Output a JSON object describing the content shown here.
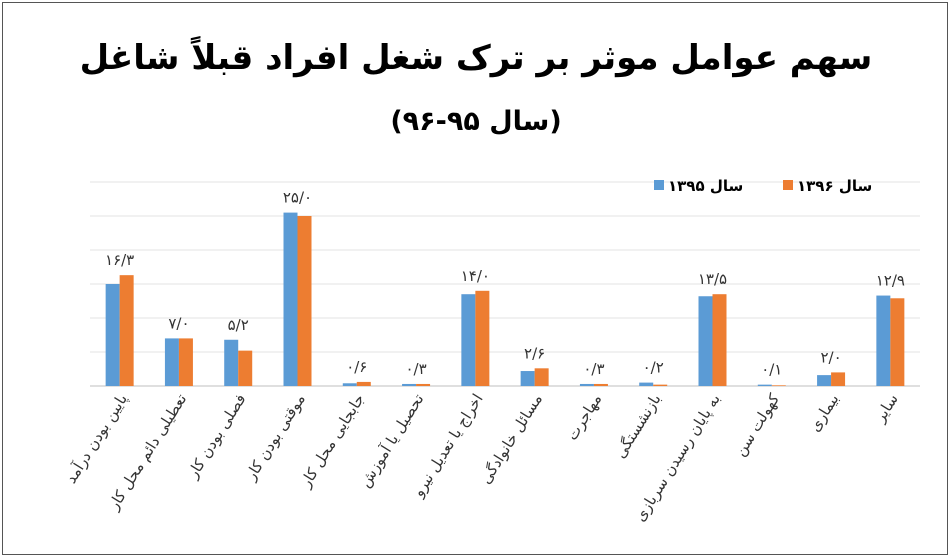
{
  "chart_data": {
    "type": "bar",
    "title": "سهم عوامل موثر بر ترک شغل افراد قبلاً شاغل",
    "subtitle": "(سال ۹۵-۹۶)",
    "categories": [
      "پایین بودن درآمد",
      "تعطیلی دائم محل کار",
      "فصلی بودن کار",
      "موقتی بودن کار",
      "جابجایی محل کار",
      "تحصیل یا آموزش",
      "اخراج یا تعدیل نیرو",
      "مسائل خانوادگی",
      "مهاجرت",
      "بازنشستگی",
      "به پایان رسیدن سربازی",
      "کهولت سن",
      "بیماری",
      "سایر"
    ],
    "series": [
      {
        "name": "سال ۱۳۹۵",
        "color": "#5B9BD5",
        "values": [
          15.0,
          7.0,
          6.8,
          25.5,
          0.4,
          0.3,
          13.5,
          2.2,
          0.3,
          0.5,
          13.2,
          0.2,
          1.6,
          13.3
        ]
      },
      {
        "name": "سال ۱۳۹۶",
        "color": "#ED7D31",
        "values": [
          16.3,
          7.0,
          5.2,
          25.0,
          0.6,
          0.3,
          14.0,
          2.6,
          0.3,
          0.2,
          13.5,
          0.1,
          2.0,
          12.9
        ]
      }
    ],
    "data_labels": [
      "۱۶/۳",
      "۷/۰",
      "۵/۲",
      "۲۵/۰",
      "۰/۶",
      "۰/۳",
      "۱۴/۰",
      "۲/۶",
      "۰/۳",
      "۰/۲",
      "۱۳/۵",
      "۰/۱",
      "۲/۰",
      "۱۲/۹"
    ],
    "ylim": [
      0,
      30
    ],
    "grid": true,
    "legend_position": "top-right"
  }
}
